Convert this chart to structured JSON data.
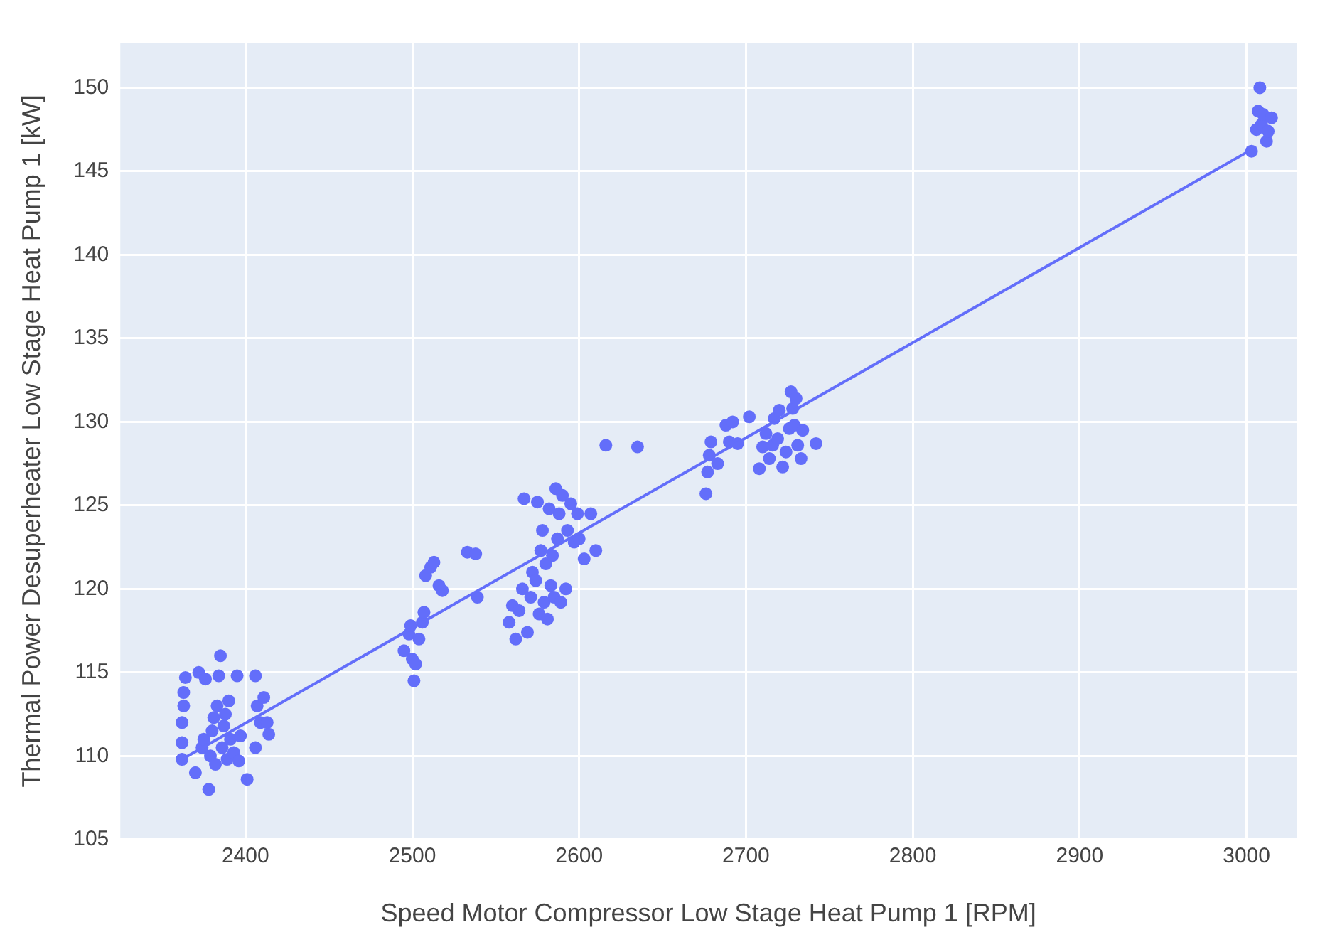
{
  "chart_data": {
    "type": "scatter",
    "xlabel": "Speed Motor Compressor Low Stage Heat Pump 1 [RPM]",
    "ylabel": "Thermal Power Desuperheater Low Stage Heat Pump 1 [kW]",
    "xlim": [
      2325,
      3030
    ],
    "xticks": [
      2400,
      2500,
      2600,
      2700,
      2800,
      2900,
      3000
    ],
    "ylim": [
      105,
      152.7
    ],
    "yticks": [
      105,
      110,
      115,
      120,
      125,
      130,
      135,
      140,
      145,
      150
    ],
    "grid": true,
    "legend": false,
    "marker": "circle",
    "series": [
      {
        "type": "scatter",
        "color": "#636efa",
        "x": [
          2362,
          2362,
          2362,
          2363,
          2363,
          2364,
          2370,
          2372,
          2374,
          2375,
          2376,
          2378,
          2379,
          2380,
          2381,
          2382,
          2383,
          2384,
          2385,
          2386,
          2387,
          2388,
          2389,
          2390,
          2391,
          2393,
          2395,
          2396,
          2397,
          2401,
          2406,
          2406,
          2407,
          2409,
          2411,
          2413,
          2414,
          2495,
          2498,
          2499,
          2500,
          2501,
          2502,
          2504,
          2506,
          2507,
          2508,
          2511,
          2513,
          2516,
          2518,
          2533,
          2538,
          2539,
          2558,
          2560,
          2562,
          2564,
          2566,
          2567,
          2569,
          2571,
          2572,
          2574,
          2575,
          2576,
          2577,
          2578,
          2579,
          2580,
          2581,
          2582,
          2583,
          2584,
          2585,
          2586,
          2587,
          2588,
          2589,
          2590,
          2592,
          2593,
          2595,
          2597,
          2599,
          2600,
          2603,
          2607,
          2610,
          2616,
          2635,
          2676,
          2677,
          2678,
          2679,
          2683,
          2688,
          2690,
          2692,
          2695,
          2702,
          2708,
          2710,
          2712,
          2714,
          2716,
          2717,
          2719,
          2720,
          2722,
          2724,
          2726,
          2727,
          2728,
          2729,
          2730,
          2731,
          2733,
          2734,
          2742,
          3003,
          3006,
          3007,
          3008,
          3009,
          3010,
          3012,
          3013,
          3015
        ],
        "values": [
          109.8,
          110.8,
          112,
          113,
          113.8,
          114.7,
          109,
          115,
          110.5,
          111,
          114.6,
          108,
          110,
          111.5,
          112.3,
          109.5,
          113,
          114.8,
          116,
          110.5,
          111.8,
          112.5,
          109.8,
          113.3,
          111,
          110.2,
          114.8,
          109.7,
          111.2,
          108.6,
          110.5,
          114.8,
          113,
          112,
          113.5,
          112,
          111.3,
          116.3,
          117.3,
          117.8,
          115.8,
          114.5,
          115.5,
          117,
          118,
          118.6,
          120.8,
          121.3,
          121.6,
          120.2,
          119.9,
          122.2,
          122.1,
          119.5,
          118,
          119,
          117,
          118.7,
          120,
          125.4,
          117.4,
          119.5,
          121,
          120.5,
          125.2,
          118.5,
          122.3,
          123.5,
          119.2,
          121.5,
          118.2,
          124.8,
          120.2,
          122,
          119.5,
          126,
          123,
          124.5,
          119.2,
          125.6,
          120,
          123.5,
          125.1,
          122.8,
          124.5,
          123,
          121.8,
          124.5,
          122.3,
          128.6,
          128.5,
          125.7,
          127,
          128,
          128.8,
          127.5,
          129.8,
          128.8,
          130,
          128.7,
          130.3,
          127.2,
          128.5,
          129.3,
          127.8,
          128.6,
          130.2,
          129,
          130.7,
          127.3,
          128.2,
          129.6,
          131.8,
          130.8,
          129.8,
          131.4,
          128.6,
          127.8,
          129.5,
          128.7,
          146.2,
          147.5,
          148.6,
          150,
          147.8,
          148.4,
          146.8,
          147.4,
          148.2
        ]
      },
      {
        "type": "line",
        "color": "#636efa",
        "marker": "none",
        "line_style": "solid",
        "x": [
          2362,
          3003
        ],
        "values": [
          109.8,
          146.3
        ]
      }
    ]
  }
}
